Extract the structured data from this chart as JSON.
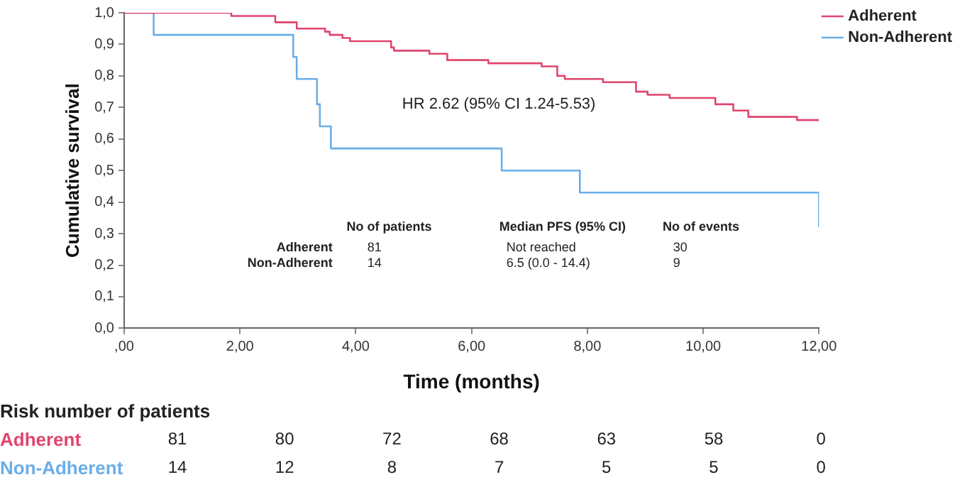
{
  "chart_data": {
    "type": "step",
    "xlabel": "Time (months)",
    "ylabel": "Cumulative survival",
    "xlim": [
      0,
      12
    ],
    "xticks": [
      {
        "value": 0,
        "label": ",00"
      },
      {
        "value": 2,
        "label": "2,00"
      },
      {
        "value": 4,
        "label": "4,00"
      },
      {
        "value": 6,
        "label": "6,00"
      },
      {
        "value": 8,
        "label": "8,00"
      },
      {
        "value": 10,
        "label": "10,00"
      },
      {
        "value": 12,
        "label": "12,00"
      }
    ],
    "ylim": [
      0,
      1
    ],
    "yticks": [
      {
        "value": 0,
        "label": "0,0"
      },
      {
        "value": 0.1,
        "label": "0,1"
      },
      {
        "value": 0.2,
        "label": "0,2"
      },
      {
        "value": 0.3,
        "label": "0,3"
      },
      {
        "value": 0.4,
        "label": "0,4"
      },
      {
        "value": 0.5,
        "label": "0,5"
      },
      {
        "value": 0.6,
        "label": "0,6"
      },
      {
        "value": 0.7,
        "label": "0,7"
      },
      {
        "value": 0.8,
        "label": "0,8"
      },
      {
        "value": 0.9,
        "label": "0,9"
      },
      {
        "value": 1,
        "label": "1,0"
      }
    ],
    "legend": "top right",
    "marker": "none",
    "line_style": "solid",
    "series": [
      {
        "name": "Adherent",
        "color": "#e0456e",
        "x": [
          0,
          1.85,
          2.61,
          2.98,
          3.47,
          3.55,
          3.77,
          3.9,
          4.61,
          4.66,
          5.27,
          5.58,
          6.29,
          7.21,
          7.48,
          7.61,
          8.27,
          8.84,
          9.04,
          9.42,
          10.21,
          10.52,
          10.78,
          11.62,
          12
        ],
        "values": [
          1,
          0.99,
          0.97,
          0.95,
          0.94,
          0.93,
          0.92,
          0.91,
          0.89,
          0.88,
          0.87,
          0.85,
          0.84,
          0.83,
          0.8,
          0.79,
          0.78,
          0.75,
          0.74,
          0.73,
          0.71,
          0.69,
          0.67,
          0.66,
          0.66
        ]
      },
      {
        "name": "Non-Adherent",
        "color": "#6aaee8",
        "x": [
          0,
          0.51,
          2.92,
          2.98,
          3.33,
          3.38,
          3.57,
          6.52,
          7.87,
          12
        ],
        "values": [
          1,
          0.93,
          0.86,
          0.79,
          0.71,
          0.64,
          0.57,
          0.5,
          0.43,
          0.32
        ]
      }
    ],
    "annotations": [
      "HR 2.62 (95% CI 1.24-5.53)",
      "No of patients",
      "Median PFS (95% CI)",
      "No of events",
      "Adherent",
      "81",
      "Not reached",
      "30",
      "Non-Adherent",
      "14",
      "6.5 (0.0 - 14.4)",
      "9",
      "Risk number of patients",
      "Adherent",
      "81",
      "80",
      "72",
      "68",
      "63",
      "58",
      "0",
      "Non-Adherent",
      "14",
      "12",
      "8",
      "7",
      "5",
      "5",
      "0"
    ]
  }
}
